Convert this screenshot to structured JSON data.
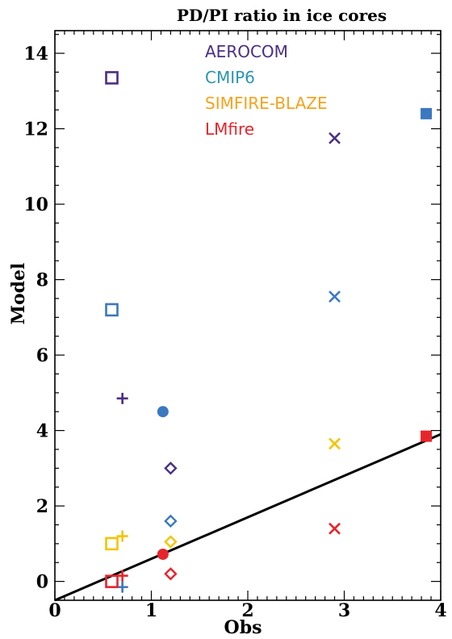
{
  "chart_data": {
    "type": "scatter",
    "title": "PD/PI ratio in ice cores",
    "xlabel": "Obs",
    "ylabel": "Model",
    "xlim": [
      0,
      4
    ],
    "ylim": [
      -0.5,
      14.6
    ],
    "xticks": [
      0,
      1,
      2,
      3,
      4
    ],
    "yticks": [
      0,
      2,
      4,
      6,
      8,
      10,
      12,
      14
    ],
    "x_tick_labels": [
      "0",
      "1",
      "2",
      "3",
      "4"
    ],
    "y_tick_labels": [
      "0",
      "2",
      "4",
      "6",
      "8",
      "10",
      "12",
      "14"
    ],
    "grid": false,
    "legend_placement": "top-center",
    "series": [
      {
        "name": "AEROCOM",
        "color": "#4B2E83",
        "points": [
          {
            "x": 0.59,
            "y": 13.35,
            "marker": "square-open"
          },
          {
            "x": 0.7,
            "y": 4.85,
            "marker": "plus"
          },
          {
            "x": 1.2,
            "y": 3.0,
            "marker": "diamond-open"
          },
          {
            "x": 2.9,
            "y": 11.75,
            "marker": "x"
          }
        ]
      },
      {
        "name": "CMIP6",
        "color": "#3A78C0",
        "points": [
          {
            "x": 0.59,
            "y": 7.2,
            "marker": "square-open"
          },
          {
            "x": 0.7,
            "y": -0.15,
            "marker": "plus"
          },
          {
            "x": 1.12,
            "y": 4.5,
            "marker": "circle-filled"
          },
          {
            "x": 1.2,
            "y": 1.6,
            "marker": "diamond-open"
          },
          {
            "x": 2.9,
            "y": 7.55,
            "marker": "x"
          },
          {
            "x": 3.85,
            "y": 12.4,
            "marker": "square-filled"
          }
        ]
      },
      {
        "name": "SIMFIRE-BLAZE",
        "color": "#F5C400",
        "points": [
          {
            "x": 0.59,
            "y": 1.0,
            "marker": "square-open"
          },
          {
            "x": 0.7,
            "y": 1.2,
            "marker": "plus"
          },
          {
            "x": 1.2,
            "y": 1.05,
            "marker": "diamond-open"
          },
          {
            "x": 2.9,
            "y": 3.65,
            "marker": "x"
          }
        ]
      },
      {
        "name": "LMfire",
        "color": "#E8242B",
        "points": [
          {
            "x": 0.59,
            "y": 0.0,
            "marker": "square-open"
          },
          {
            "x": 0.7,
            "y": 0.15,
            "marker": "plus"
          },
          {
            "x": 1.12,
            "y": 0.72,
            "marker": "circle-filled"
          },
          {
            "x": 1.2,
            "y": 0.2,
            "marker": "diamond-open"
          },
          {
            "x": 2.9,
            "y": 1.4,
            "marker": "x"
          },
          {
            "x": 3.85,
            "y": 3.85,
            "marker": "square-filled"
          }
        ]
      }
    ],
    "reference_line": {
      "x": [
        0,
        4
      ],
      "y": [
        -0.5,
        3.9
      ],
      "color": "#000000"
    },
    "legend_colors": [
      "#4B2E83",
      "#2A95B0",
      "#F7A21B",
      "#E8242B"
    ]
  }
}
